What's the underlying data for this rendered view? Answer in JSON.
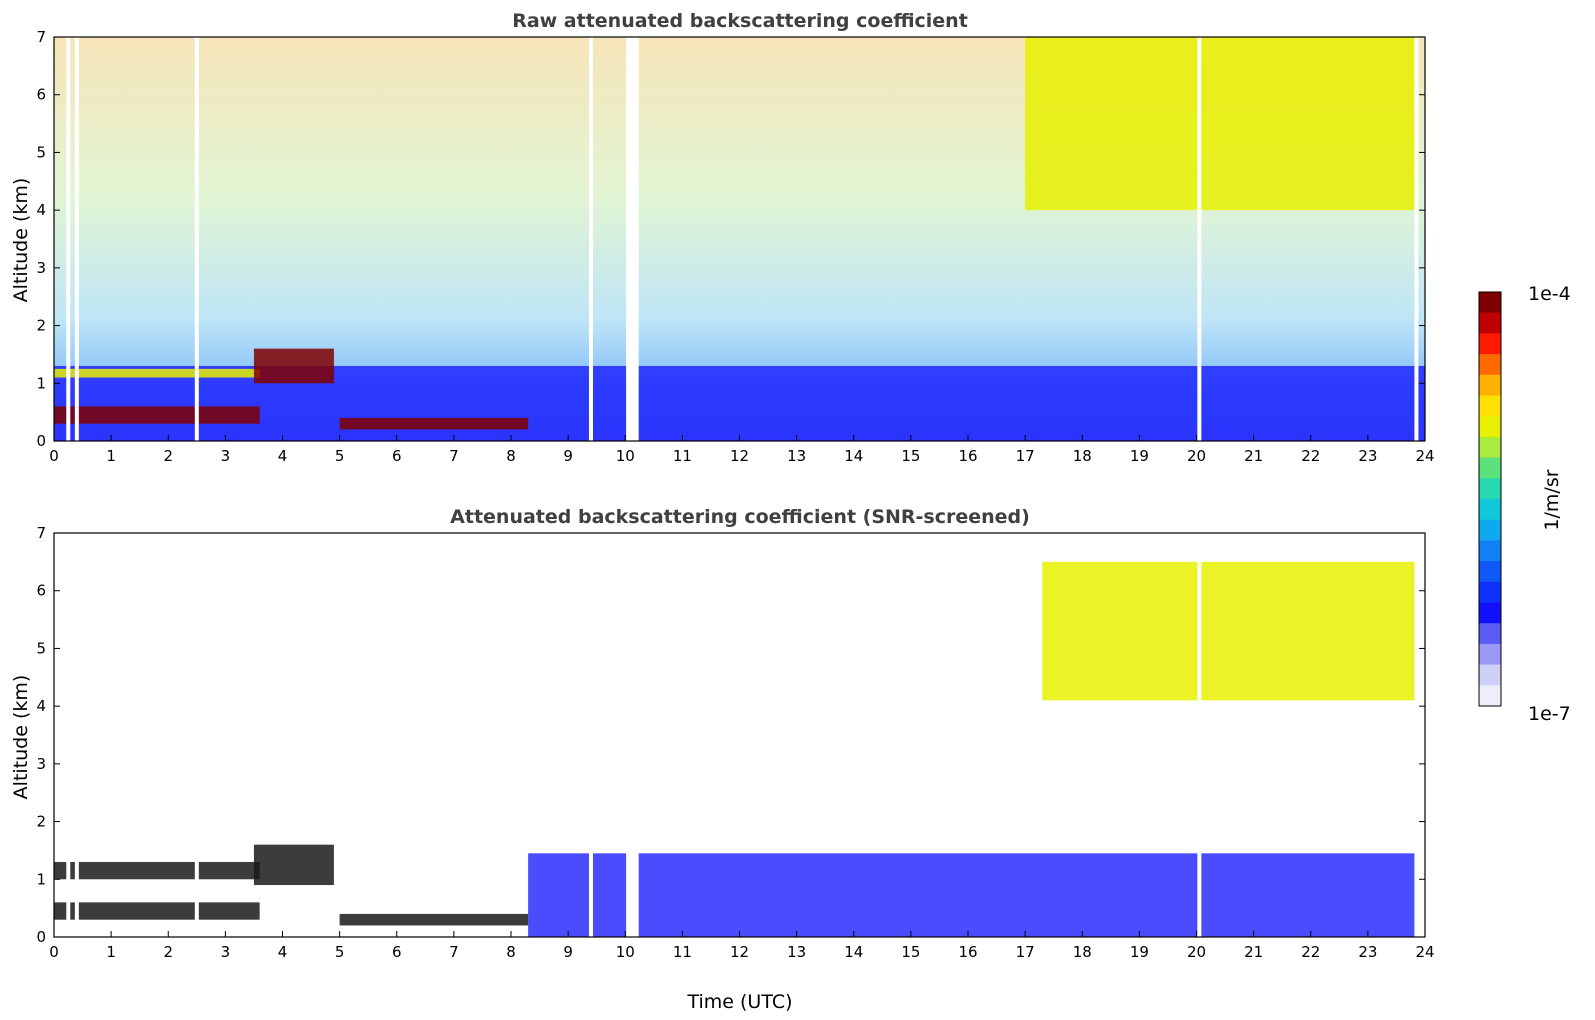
{
  "chart_data": [
    {
      "type": "heatmap",
      "title": "Raw attenuated backscattering coefficient",
      "xlabel": "",
      "ylabel": "Altitude (km)",
      "xlim": [
        0,
        24
      ],
      "ylim": [
        0,
        7
      ],
      "xticks": [
        0,
        1,
        2,
        3,
        4,
        5,
        6,
        7,
        8,
        9,
        10,
        11,
        12,
        13,
        14,
        15,
        16,
        17,
        18,
        19,
        20,
        21,
        22,
        23,
        24
      ],
      "yticks": [
        0,
        1,
        2,
        3,
        4,
        5,
        6,
        7
      ],
      "data_gaps_utc": [
        0.25,
        0.4,
        2.5,
        9.4,
        10.05,
        10.1,
        10.15,
        10.2,
        20.05,
        23.85
      ],
      "features": [
        {
          "what": "noisy background",
          "altitude_km": [
            1.5,
            7
          ],
          "level": "high"
        },
        {
          "what": "boundary layer",
          "time_utc": [
            0,
            24
          ],
          "altitude_km": [
            0,
            1.3
          ],
          "level": "low"
        },
        {
          "what": "low cloud layer",
          "time_utc": [
            0,
            3.6
          ],
          "altitude_km": [
            0.3,
            0.6
          ],
          "level": "max"
        },
        {
          "what": "cloud layer",
          "time_utc": [
            0,
            3.6
          ],
          "altitude_km": [
            1.1,
            1.25
          ],
          "level": "high"
        },
        {
          "what": "rising cloud",
          "time_utc": [
            3.5,
            4.9
          ],
          "altitude_km": [
            1.0,
            1.6
          ],
          "level": "max"
        },
        {
          "what": "low cloud layer",
          "time_utc": [
            5.0,
            8.3
          ],
          "altitude_km": [
            0.2,
            0.4
          ],
          "level": "max"
        },
        {
          "what": "cirrus",
          "time_utc": [
            17,
            23.85
          ],
          "altitude_km": [
            4.0,
            7.0
          ],
          "level": "high"
        }
      ]
    },
    {
      "type": "heatmap",
      "title": "Attenuated backscattering coefficient (SNR-screened)",
      "xlabel": "Time (UTC)",
      "ylabel": "Altitude (km)",
      "xlim": [
        0,
        24
      ],
      "ylim": [
        0,
        7
      ],
      "xticks": [
        0,
        1,
        2,
        3,
        4,
        5,
        6,
        7,
        8,
        9,
        10,
        11,
        12,
        13,
        14,
        15,
        16,
        17,
        18,
        19,
        20,
        21,
        22,
        23,
        24
      ],
      "yticks": [
        0,
        1,
        2,
        3,
        4,
        5,
        6,
        7
      ],
      "data_gaps_utc": [
        0.25,
        0.4,
        2.5,
        9.4,
        10.05,
        10.1,
        10.15,
        10.2,
        20.05,
        23.85
      ],
      "features": [
        {
          "what": "boundary layer",
          "time_utc": [
            8.3,
            23.85
          ],
          "altitude_km": [
            0,
            1.45
          ],
          "level": "low"
        },
        {
          "what": "low cloud layer",
          "time_utc": [
            0,
            3.6
          ],
          "altitude_km": [
            0.3,
            0.6
          ],
          "level": "saturated"
        },
        {
          "what": "cloud layer",
          "time_utc": [
            0,
            3.6
          ],
          "altitude_km": [
            1.0,
            1.3
          ],
          "level": "saturated"
        },
        {
          "what": "rising cloud",
          "time_utc": [
            3.5,
            4.9
          ],
          "altitude_km": [
            0.9,
            1.6
          ],
          "level": "saturated"
        },
        {
          "what": "low cloud layer",
          "time_utc": [
            5.0,
            8.3
          ],
          "altitude_km": [
            0.2,
            0.4
          ],
          "level": "saturated"
        },
        {
          "what": "cirrus",
          "time_utc": [
            17.3,
            23.85
          ],
          "altitude_km": [
            4.1,
            6.5
          ],
          "level": "high"
        }
      ]
    }
  ],
  "colorbar": {
    "max_label": "1e-4",
    "min_label": "1e-7",
    "label": "1/m/sr",
    "colormap": [
      "#7f0000",
      "#c00000",
      "#ff1a00",
      "#ff6a00",
      "#ffb000",
      "#ffe000",
      "#e8f000",
      "#a8ec40",
      "#5ce27a",
      "#28d8b0",
      "#10c8d8",
      "#10a8ee",
      "#1080f4",
      "#1058f8",
      "#1030fc",
      "#1010ff",
      "#5a5af5",
      "#9a9af5",
      "#cfd0f5",
      "#eeeefa"
    ]
  }
}
